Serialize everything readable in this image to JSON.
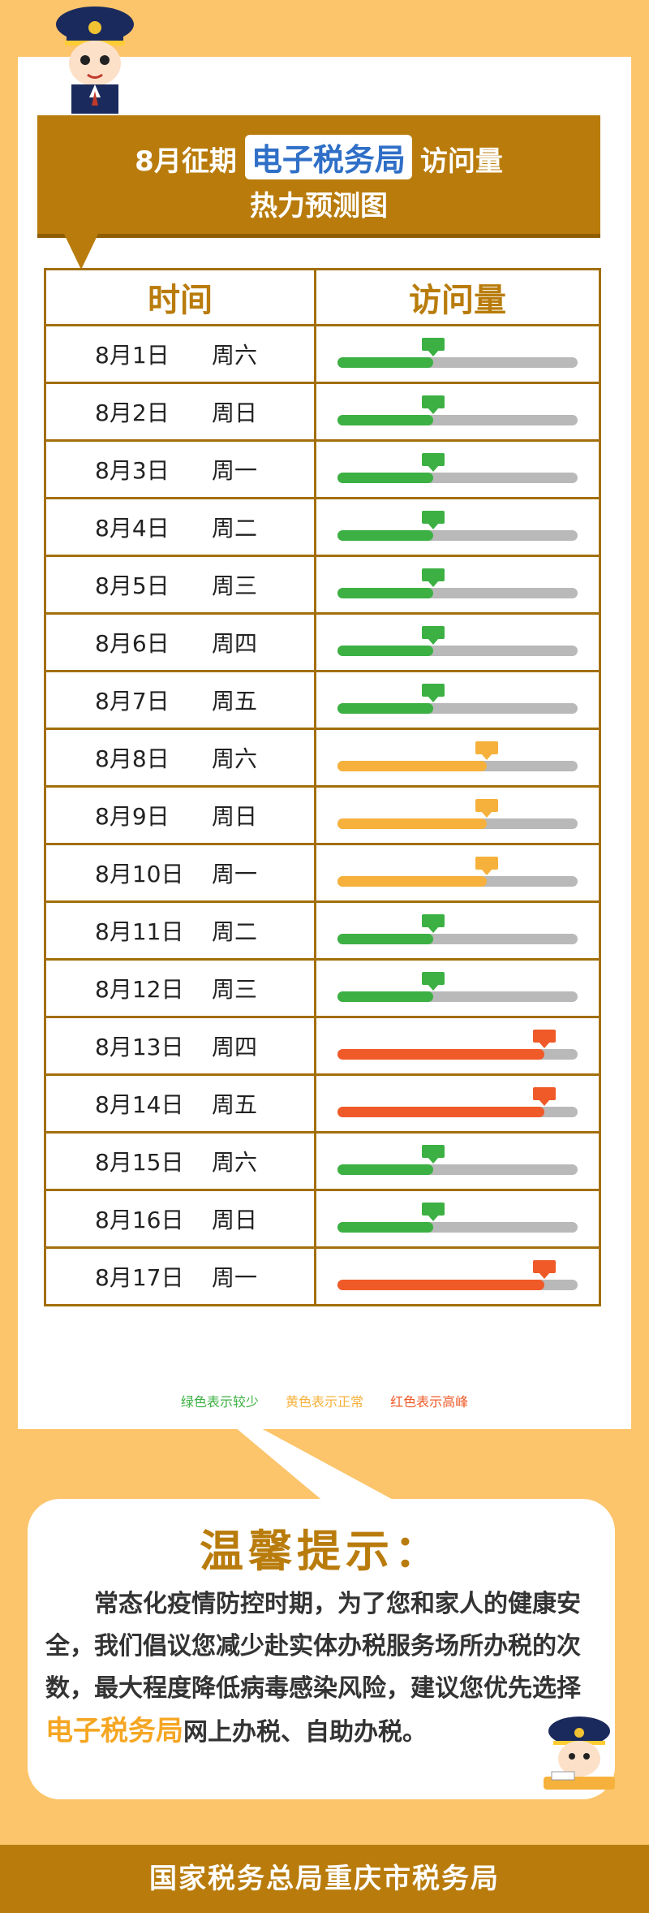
{
  "title": {
    "prefix": "8月征期",
    "highlight": "电子税务局",
    "suffix": "访问量",
    "line2": "热力预测图"
  },
  "table": {
    "headers": [
      "时间",
      "访问量"
    ],
    "rows": [
      {
        "date": "8月1日",
        "weekday": "周六",
        "level": "green"
      },
      {
        "date": "8月2日",
        "weekday": "周日",
        "level": "green"
      },
      {
        "date": "8月3日",
        "weekday": "周一",
        "level": "green"
      },
      {
        "date": "8月4日",
        "weekday": "周二",
        "level": "green"
      },
      {
        "date": "8月5日",
        "weekday": "周三",
        "level": "green"
      },
      {
        "date": "8月6日",
        "weekday": "周四",
        "level": "green"
      },
      {
        "date": "8月7日",
        "weekday": "周五",
        "level": "green"
      },
      {
        "date": "8月8日",
        "weekday": "周六",
        "level": "yellow"
      },
      {
        "date": "8月9日",
        "weekday": "周日",
        "level": "yellow"
      },
      {
        "date": "8月10日",
        "weekday": "周一",
        "level": "yellow"
      },
      {
        "date": "8月11日",
        "weekday": "周二",
        "level": "green"
      },
      {
        "date": "8月12日",
        "weekday": "周三",
        "level": "green"
      },
      {
        "date": "8月13日",
        "weekday": "周四",
        "level": "red"
      },
      {
        "date": "8月14日",
        "weekday": "周五",
        "level": "red"
      },
      {
        "date": "8月15日",
        "weekday": "周六",
        "level": "green"
      },
      {
        "date": "8月16日",
        "weekday": "周日",
        "level": "green"
      },
      {
        "date": "8月17日",
        "weekday": "周一",
        "level": "red"
      }
    ]
  },
  "levels": {
    "green": {
      "fill": 0.4,
      "color": "#3cb043"
    },
    "yellow": {
      "fill": 0.62,
      "color": "#f6b13c"
    },
    "red": {
      "fill": 0.86,
      "color": "#ef5a28"
    }
  },
  "legend": {
    "green": "绿色表示较少",
    "yellow": "黄色表示正常",
    "red": "红色表示高峰"
  },
  "tip": {
    "title": "温馨提示：",
    "body_part1": "常态化疫情防控时期，为了您和家人的健康安全，我们倡议您减少赴实体办税服务场所办税的次数，最大程度降低病毒感染风险，建议您优先选择",
    "highlight": "电子税务局",
    "body_part2": "网上办税、自助办税。"
  },
  "footer": "国家税务总局重庆市税务局",
  "colors": {
    "brand": "#b97c0c",
    "background": "#fcc56b",
    "track": "#b9b9b9"
  }
}
